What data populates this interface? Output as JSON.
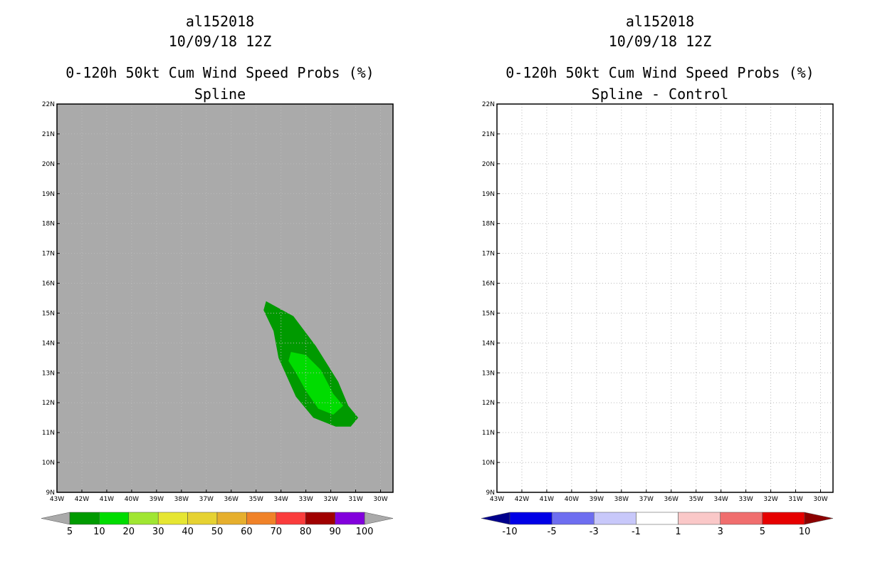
{
  "left_panel": {
    "storm_id": "al152018",
    "datetime": "10/09/18 12Z",
    "product": "0-120h 50kt Cum Wind Speed Probs (%)",
    "subtitle": "Spline",
    "colorbar": {
      "labels": [
        "5",
        "10",
        "20",
        "30",
        "40",
        "50",
        "60",
        "70",
        "80",
        "90",
        "100"
      ],
      "colors": [
        "#009a00",
        "#00dc00",
        "#a0e632",
        "#e6e632",
        "#e6d232",
        "#e6af2d",
        "#f08228",
        "#fa3c3c",
        "#a00000",
        "#8200dc"
      ],
      "under_color": "#aaaaaa",
      "over_color": "#aaaaaa"
    },
    "background_color": "#aaaaaa",
    "probability_regions": [
      {
        "level": "5-10",
        "color": "#009a00",
        "lonlat": [
          [
            -34.6,
            15.4
          ],
          [
            -33.5,
            14.9
          ],
          [
            -32.6,
            13.9
          ],
          [
            -31.7,
            12.7
          ],
          [
            -31.3,
            11.9
          ],
          [
            -30.9,
            11.5
          ],
          [
            -31.2,
            11.2
          ],
          [
            -31.8,
            11.2
          ],
          [
            -32.7,
            11.5
          ],
          [
            -33.4,
            12.2
          ],
          [
            -34.1,
            13.5
          ],
          [
            -34.3,
            14.4
          ],
          [
            -34.7,
            15.1
          ]
        ]
      },
      {
        "level": "10-20",
        "color": "#00dc00",
        "lonlat": [
          [
            -33.6,
            13.7
          ],
          [
            -33.0,
            13.6
          ],
          [
            -32.4,
            13.1
          ],
          [
            -31.9,
            12.3
          ],
          [
            -31.5,
            11.9
          ],
          [
            -31.9,
            11.6
          ],
          [
            -32.5,
            11.8
          ],
          [
            -33.0,
            12.4
          ],
          [
            -33.4,
            13.0
          ],
          [
            -33.7,
            13.4
          ]
        ]
      }
    ]
  },
  "right_panel": {
    "storm_id": "al152018",
    "datetime": "10/09/18 12Z",
    "product": "0-120h 50kt Cum Wind Speed Probs (%)",
    "subtitle": "Spline - Control",
    "colorbar": {
      "labels": [
        "-10",
        "-5",
        "-3",
        "-1",
        "1",
        "3",
        "5",
        "10"
      ],
      "colors": [
        "#0000e6",
        "#6e6ef0",
        "#c8c8fa",
        "#ffffff",
        "#fac8c8",
        "#f06e6e",
        "#e60000"
      ],
      "under_color": "#00008c",
      "over_color": "#8c0000"
    },
    "background_color": "#ffffff"
  },
  "map": {
    "lon_range": [
      -43,
      -29.5
    ],
    "lat_range": [
      9,
      22
    ],
    "lon_tick_labels": [
      "43W",
      "42W",
      "41W",
      "40W",
      "39W",
      "38W",
      "37W",
      "36W",
      "35W",
      "34W",
      "33W",
      "32W",
      "31W",
      "30W"
    ],
    "lat_tick_labels": [
      "9N",
      "10N",
      "11N",
      "12N",
      "13N",
      "14N",
      "15N",
      "16N",
      "17N",
      "18N",
      "19N",
      "20N",
      "21N",
      "22N"
    ],
    "grid": true
  }
}
